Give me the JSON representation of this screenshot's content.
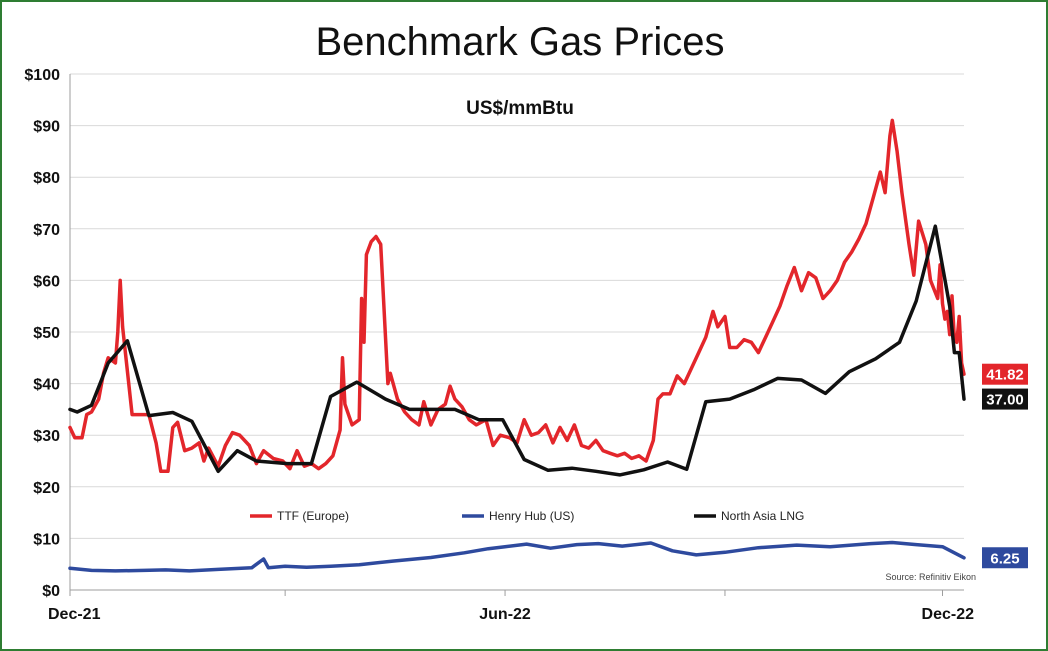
{
  "chart_data": {
    "type": "line",
    "title": "Benchmark Gas Prices",
    "subtitle": "US$/mmBtu",
    "xlabel": "",
    "ylabel": "",
    "ylim": [
      0,
      100
    ],
    "y_ticks": [
      0,
      10,
      20,
      30,
      40,
      50,
      60,
      70,
      80,
      90,
      100
    ],
    "y_tick_labels": [
      "$0",
      "$10",
      "$20",
      "$30",
      "$40",
      "$50",
      "$60",
      "$70",
      "$80",
      "$90",
      "$100"
    ],
    "x_range": [
      "2021-12-01",
      "2022-12-10"
    ],
    "x_tick_labels": [
      {
        "date": "2021-12-01",
        "label": "Dec-21"
      },
      {
        "date": "2022-06-01",
        "label": "Jun-22"
      },
      {
        "date": "2022-12-01",
        "label": "Dec-22"
      }
    ],
    "x_minor_ticks": [
      "2022-03-01",
      "2022-09-01"
    ],
    "grid": "horizontal",
    "legend_position": "bottom",
    "source": "Source: Refinitiv Eikon",
    "series": [
      {
        "name": "TTF (Europe)",
        "color": "#e3262b",
        "end_label": "41.82",
        "points": [
          [
            "2021-12-01",
            31.5
          ],
          [
            "2021-12-03",
            29.5
          ],
          [
            "2021-12-06",
            29.5
          ],
          [
            "2021-12-08",
            34.0
          ],
          [
            "2021-12-10",
            34.5
          ],
          [
            "2021-12-13",
            37.0
          ],
          [
            "2021-12-15",
            42.0
          ],
          [
            "2021-12-17",
            45.0
          ],
          [
            "2021-12-20",
            44.0
          ],
          [
            "2021-12-21",
            50.0
          ],
          [
            "2021-12-22",
            60.0
          ],
          [
            "2021-12-23",
            51.0
          ],
          [
            "2021-12-27",
            34.0
          ],
          [
            "2021-12-30",
            34.0
          ],
          [
            "2022-01-03",
            34.0
          ],
          [
            "2022-01-06",
            28.5
          ],
          [
            "2022-01-08",
            23.0
          ],
          [
            "2022-01-11",
            23.0
          ],
          [
            "2022-01-13",
            31.5
          ],
          [
            "2022-01-15",
            32.5
          ],
          [
            "2022-01-18",
            27.0
          ],
          [
            "2022-01-21",
            27.5
          ],
          [
            "2022-01-24",
            28.5
          ],
          [
            "2022-01-26",
            25.0
          ],
          [
            "2022-01-28",
            27.5
          ],
          [
            "2022-02-01",
            24.0
          ],
          [
            "2022-02-04",
            28.0
          ],
          [
            "2022-02-07",
            30.5
          ],
          [
            "2022-02-10",
            30.0
          ],
          [
            "2022-02-14",
            28.0
          ],
          [
            "2022-02-17",
            24.5
          ],
          [
            "2022-02-20",
            27.0
          ],
          [
            "2022-02-24",
            25.5
          ],
          [
            "2022-02-28",
            25.0
          ],
          [
            "2022-03-03",
            23.5
          ],
          [
            "2022-03-06",
            27.0
          ],
          [
            "2022-03-09",
            24.0
          ],
          [
            "2022-03-12",
            24.5
          ],
          [
            "2022-03-15",
            23.5
          ],
          [
            "2022-03-18",
            24.5
          ],
          [
            "2022-03-21",
            26.0
          ],
          [
            "2022-03-24",
            31.0
          ],
          [
            "2022-03-25",
            45.0
          ],
          [
            "2022-03-26",
            36.0
          ],
          [
            "2022-03-29",
            32.0
          ],
          [
            "2022-04-01",
            33.0
          ],
          [
            "2022-04-02",
            56.5
          ],
          [
            "2022-04-03",
            48.0
          ],
          [
            "2022-04-04",
            65.0
          ],
          [
            "2022-04-06",
            67.5
          ],
          [
            "2022-04-08",
            68.5
          ],
          [
            "2022-04-10",
            67.0
          ],
          [
            "2022-04-13",
            40.0
          ],
          [
            "2022-04-14",
            42.0
          ],
          [
            "2022-04-17",
            37.0
          ],
          [
            "2022-04-20",
            34.5
          ],
          [
            "2022-04-23",
            33.0
          ],
          [
            "2022-04-26",
            32.0
          ],
          [
            "2022-04-28",
            36.5
          ],
          [
            "2022-05-01",
            32.0
          ],
          [
            "2022-05-04",
            35.0
          ],
          [
            "2022-05-07",
            36.0
          ],
          [
            "2022-05-09",
            39.5
          ],
          [
            "2022-05-11",
            37.0
          ],
          [
            "2022-05-14",
            35.5
          ],
          [
            "2022-05-17",
            33.0
          ],
          [
            "2022-05-20",
            32.0
          ],
          [
            "2022-05-24",
            33.0
          ],
          [
            "2022-05-27",
            28.0
          ],
          [
            "2022-05-30",
            30.0
          ],
          [
            "2022-06-03",
            29.5
          ],
          [
            "2022-06-06",
            28.5
          ],
          [
            "2022-06-09",
            33.0
          ],
          [
            "2022-06-12",
            30.0
          ],
          [
            "2022-06-15",
            30.5
          ],
          [
            "2022-06-18",
            32.0
          ],
          [
            "2022-06-21",
            28.5
          ],
          [
            "2022-06-24",
            31.5
          ],
          [
            "2022-06-27",
            29.0
          ],
          [
            "2022-06-30",
            32.0
          ],
          [
            "2022-07-03",
            28.0
          ],
          [
            "2022-07-06",
            27.5
          ],
          [
            "2022-07-09",
            29.0
          ],
          [
            "2022-07-12",
            27.0
          ],
          [
            "2022-07-15",
            26.5
          ],
          [
            "2022-07-18",
            26.0
          ],
          [
            "2022-07-21",
            26.5
          ],
          [
            "2022-07-24",
            25.5
          ],
          [
            "2022-07-27",
            26.0
          ],
          [
            "2022-07-30",
            25.0
          ],
          [
            "2022-08-02",
            29.0
          ],
          [
            "2022-08-04",
            37.0
          ],
          [
            "2022-08-06",
            38.0
          ],
          [
            "2022-08-09",
            38.0
          ],
          [
            "2022-08-12",
            41.5
          ],
          [
            "2022-08-15",
            40.0
          ],
          [
            "2022-08-18",
            43.0
          ],
          [
            "2022-08-21",
            46.0
          ],
          [
            "2022-08-24",
            49.0
          ],
          [
            "2022-08-27",
            54.0
          ],
          [
            "2022-08-29",
            51.0
          ],
          [
            "2022-09-01",
            53.0
          ],
          [
            "2022-09-03",
            47.0
          ],
          [
            "2022-09-06",
            47.0
          ],
          [
            "2022-09-09",
            48.5
          ],
          [
            "2022-09-12",
            48.0
          ],
          [
            "2022-09-15",
            46.0
          ],
          [
            "2022-09-18",
            49.0
          ],
          [
            "2022-09-21",
            52.0
          ],
          [
            "2022-09-24",
            55.0
          ],
          [
            "2022-09-27",
            59.0
          ],
          [
            "2022-09-30",
            62.5
          ],
          [
            "2022-10-03",
            58.0
          ],
          [
            "2022-10-06",
            61.5
          ],
          [
            "2022-10-09",
            60.5
          ],
          [
            "2022-10-12",
            56.5
          ],
          [
            "2022-10-15",
            58.0
          ],
          [
            "2022-10-18",
            60.0
          ],
          [
            "2022-10-21",
            63.5
          ],
          [
            "2022-10-24",
            65.5
          ],
          [
            "2022-10-27",
            68.0
          ],
          [
            "2022-10-30",
            71.0
          ],
          [
            "2022-11-02",
            76.0
          ],
          [
            "2022-11-05",
            81.0
          ],
          [
            "2022-11-07",
            77.0
          ],
          [
            "2022-11-09",
            88.0
          ],
          [
            "2022-11-10",
            91.0
          ],
          [
            "2022-11-12",
            85.0
          ],
          [
            "2022-11-14",
            77.0
          ],
          [
            "2022-11-17",
            67.0
          ],
          [
            "2022-11-19",
            61.0
          ],
          [
            "2022-11-21",
            71.5
          ],
          [
            "2022-11-24",
            67.0
          ],
          [
            "2022-11-26",
            60.0
          ],
          [
            "2022-11-29",
            56.5
          ],
          [
            "2022-11-30",
            63.0
          ],
          [
            "2022-12-01",
            55.5
          ],
          [
            "2022-12-02",
            52.5
          ],
          [
            "2022-12-03",
            54.0
          ],
          [
            "2022-12-04",
            49.5
          ],
          [
            "2022-12-05",
            57.0
          ],
          [
            "2022-12-06",
            48.5
          ],
          [
            "2022-12-07",
            48.0
          ],
          [
            "2022-12-08",
            53.0
          ],
          [
            "2022-12-09",
            44.0
          ],
          [
            "2022-12-10",
            41.82
          ]
        ]
      },
      {
        "name": "Henry Hub (US)",
        "color": "#2e4a9e",
        "end_label": "6.25",
        "points": [
          [
            "2021-12-01",
            4.2
          ],
          [
            "2021-12-10",
            3.8
          ],
          [
            "2021-12-20",
            3.7
          ],
          [
            "2022-01-01",
            3.8
          ],
          [
            "2022-01-10",
            3.9
          ],
          [
            "2022-01-20",
            3.7
          ],
          [
            "2022-02-01",
            4.0
          ],
          [
            "2022-02-15",
            4.3
          ],
          [
            "2022-02-20",
            6.0
          ],
          [
            "2022-02-22",
            4.3
          ],
          [
            "2022-03-01",
            4.6
          ],
          [
            "2022-03-10",
            4.4
          ],
          [
            "2022-03-20",
            4.6
          ],
          [
            "2022-04-01",
            4.9
          ],
          [
            "2022-04-15",
            5.6
          ],
          [
            "2022-05-01",
            6.3
          ],
          [
            "2022-05-15",
            7.2
          ],
          [
            "2022-05-25",
            8.0
          ],
          [
            "2022-06-01",
            8.4
          ],
          [
            "2022-06-10",
            8.9
          ],
          [
            "2022-06-20",
            8.1
          ],
          [
            "2022-07-01",
            8.8
          ],
          [
            "2022-07-10",
            9.0
          ],
          [
            "2022-07-20",
            8.5
          ],
          [
            "2022-08-01",
            9.1
          ],
          [
            "2022-08-10",
            7.6
          ],
          [
            "2022-08-20",
            6.8
          ],
          [
            "2022-09-01",
            7.3
          ],
          [
            "2022-09-15",
            8.2
          ],
          [
            "2022-10-01",
            8.7
          ],
          [
            "2022-10-15",
            8.4
          ],
          [
            "2022-11-01",
            9.0
          ],
          [
            "2022-11-10",
            9.2
          ],
          [
            "2022-11-20",
            8.8
          ],
          [
            "2022-12-01",
            8.4
          ],
          [
            "2022-12-10",
            6.25
          ]
        ]
      },
      {
        "name": "North Asia LNG",
        "color": "#111111",
        "end_label": "37.00",
        "points": [
          [
            "2021-12-01",
            35.0
          ],
          [
            "2021-12-04",
            34.5
          ],
          [
            "2021-12-10",
            35.8
          ],
          [
            "2021-12-17",
            44.0
          ],
          [
            "2021-12-25",
            48.3
          ],
          [
            "2022-01-03",
            33.8
          ],
          [
            "2022-01-13",
            34.4
          ],
          [
            "2022-01-21",
            32.7
          ],
          [
            "2022-02-01",
            23.0
          ],
          [
            "2022-02-09",
            27.0
          ],
          [
            "2022-02-17",
            25.0
          ],
          [
            "2022-03-02",
            24.5
          ],
          [
            "2022-03-12",
            24.5
          ],
          [
            "2022-03-20",
            37.5
          ],
          [
            "2022-03-31",
            40.3
          ],
          [
            "2022-04-12",
            37.0
          ],
          [
            "2022-04-22",
            35.0
          ],
          [
            "2022-05-11",
            35.0
          ],
          [
            "2022-05-21",
            33.0
          ],
          [
            "2022-05-31",
            33.0
          ],
          [
            "2022-06-09",
            25.3
          ],
          [
            "2022-06-19",
            23.2
          ],
          [
            "2022-06-29",
            23.6
          ],
          [
            "2022-07-09",
            23.0
          ],
          [
            "2022-07-19",
            22.3
          ],
          [
            "2022-07-29",
            23.3
          ],
          [
            "2022-08-08",
            24.8
          ],
          [
            "2022-08-16",
            23.4
          ],
          [
            "2022-08-24",
            36.5
          ],
          [
            "2022-09-03",
            37.0
          ],
          [
            "2022-09-13",
            38.8
          ],
          [
            "2022-09-23",
            41.0
          ],
          [
            "2022-10-03",
            40.7
          ],
          [
            "2022-10-13",
            38.1
          ],
          [
            "2022-10-23",
            42.3
          ],
          [
            "2022-11-03",
            44.8
          ],
          [
            "2022-11-13",
            48.0
          ],
          [
            "2022-11-20",
            56.0
          ],
          [
            "2022-11-28",
            70.5
          ],
          [
            "2022-12-04",
            55.0
          ],
          [
            "2022-12-06",
            46.0
          ],
          [
            "2022-12-08",
            46.0
          ],
          [
            "2022-12-10",
            37.0
          ]
        ]
      }
    ]
  }
}
